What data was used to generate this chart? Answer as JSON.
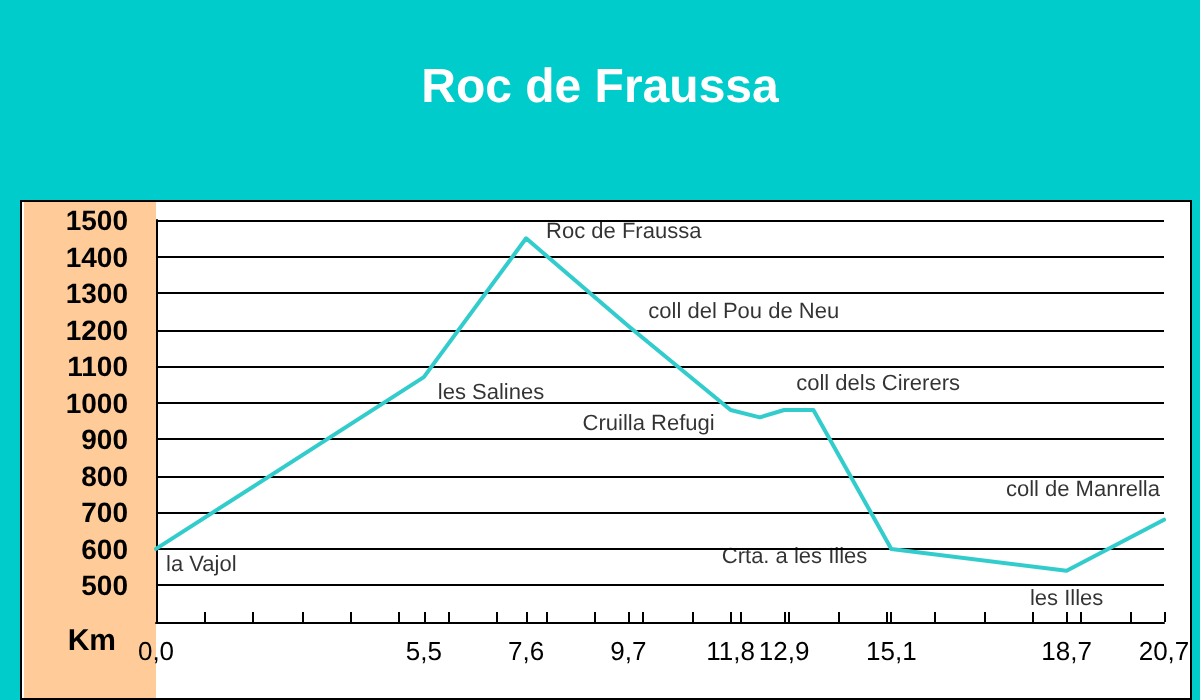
{
  "chart_data": {
    "type": "line",
    "title": "Roc de Fraussa",
    "xlabel": "Km",
    "x": [
      0,
      5.5,
      7.6,
      9.7,
      11.8,
      12.4,
      12.9,
      13.5,
      15.1,
      18.7,
      20.7
    ],
    "series": [
      {
        "color": "#33cccc",
        "values": [
          600,
          1070,
          1450,
          1210,
          980,
          960,
          980,
          980,
          600,
          540,
          680
        ]
      }
    ],
    "xlim": [
      0,
      20.7
    ],
    "xticks": [
      {
        "value": 0,
        "label": "0,0"
      },
      {
        "value": 1,
        "label": null
      },
      {
        "value": 2,
        "label": null
      },
      {
        "value": 3,
        "label": null
      },
      {
        "value": 4,
        "label": null
      },
      {
        "value": 5,
        "label": null
      },
      {
        "value": 5.5,
        "label": "5,5"
      },
      {
        "value": 6,
        "label": null
      },
      {
        "value": 7,
        "label": null
      },
      {
        "value": 7.6,
        "label": "7,6"
      },
      {
        "value": 8,
        "label": null
      },
      {
        "value": 9,
        "label": null
      },
      {
        "value": 9.7,
        "label": "9,7"
      },
      {
        "value": 10,
        "label": null
      },
      {
        "value": 11,
        "label": null
      },
      {
        "value": 11.8,
        "label": "11,8"
      },
      {
        "value": 12,
        "label": null
      },
      {
        "value": 12.9,
        "label": "12,9"
      },
      {
        "value": 13,
        "label": null
      },
      {
        "value": 14,
        "label": null
      },
      {
        "value": 15,
        "label": null
      },
      {
        "value": 15.1,
        "label": "15,1"
      },
      {
        "value": 16,
        "label": null
      },
      {
        "value": 17,
        "label": null
      },
      {
        "value": 18,
        "label": null
      },
      {
        "value": 18.7,
        "label": "18,7"
      },
      {
        "value": 19,
        "label": null
      },
      {
        "value": 20,
        "label": null
      },
      {
        "value": 20.7,
        "label": "20,7"
      }
    ],
    "ylim": [
      400,
      1500
    ],
    "yticks": [
      500,
      600,
      700,
      800,
      900,
      1000,
      1100,
      1200,
      1300,
      1400,
      1500
    ],
    "grid": "y",
    "marker": "none",
    "line_style": "solid",
    "annotations": [
      {
        "text": "la Vajol",
        "x": 0,
        "y": 600
      },
      {
        "text": "les Salines",
        "x": 5.5,
        "y": 1070
      },
      {
        "text": "Roc de Fraussa",
        "x": 7.6,
        "y": 1450
      },
      {
        "text": "coll del Pou de Neu",
        "x": 9.7,
        "y": 1210
      },
      {
        "text": "Cruilla Refugi",
        "x": 11.8,
        "y": 980
      },
      {
        "text": "coll dels Cirerers",
        "x": 12.9,
        "y": 980
      },
      {
        "text": "Crta. a les Illes",
        "x": 15.1,
        "y": 600
      },
      {
        "text": "les Illes",
        "x": 18.7,
        "y": 540
      },
      {
        "text": "coll de Manrella",
        "x": 20.7,
        "y": 680
      }
    ]
  }
}
